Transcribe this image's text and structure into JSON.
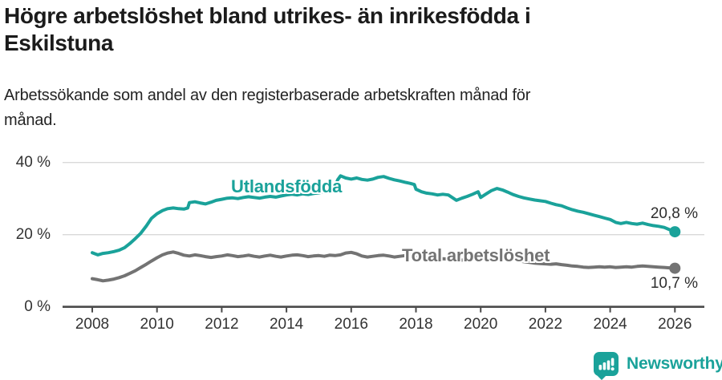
{
  "colors": {
    "brand_teal": "#1aa29a",
    "series_gray": "#737373",
    "grid": "#d9d9d9",
    "axis": "#4a4a4a",
    "text": "#333333"
  },
  "footer": {
    "brand": "Newsworthy"
  },
  "chart_data": {
    "type": "line",
    "title_lines": [
      "Högre arbetslöshet bland utrikes- än inrikesfödda i",
      "Eskilstuna"
    ],
    "subtitle_lines": [
      "Arbetssökande som andel av den registerbaserade arbetskraften månad för",
      "månad."
    ],
    "grid": "horizontal",
    "legend_position": "inline",
    "x_axis": {
      "ticks": [
        2008,
        2010,
        2012,
        2014,
        2016,
        2018,
        2020,
        2022,
        2024,
        2026
      ]
    },
    "y_axis": {
      "range": [
        0,
        44
      ],
      "ticks": [
        {
          "value": 0,
          "label": "0 %"
        },
        {
          "value": 20,
          "label": "20 %"
        },
        {
          "value": 40,
          "label": "40 %"
        }
      ]
    },
    "series": [
      {
        "name": "Utlandsfödda",
        "color": "#1aa29a",
        "end_value": 20.8,
        "end_label": "20,8 %",
        "points": [
          [
            2008.0,
            15.0
          ],
          [
            2008.17,
            14.4
          ],
          [
            2008.33,
            14.8
          ],
          [
            2008.5,
            15.0
          ],
          [
            2008.67,
            15.3
          ],
          [
            2008.83,
            15.7
          ],
          [
            2009.0,
            16.4
          ],
          [
            2009.17,
            17.6
          ],
          [
            2009.33,
            18.9
          ],
          [
            2009.5,
            20.4
          ],
          [
            2009.67,
            22.4
          ],
          [
            2009.83,
            24.5
          ],
          [
            2010.0,
            25.8
          ],
          [
            2010.17,
            26.7
          ],
          [
            2010.33,
            27.2
          ],
          [
            2010.5,
            27.4
          ],
          [
            2010.67,
            27.2
          ],
          [
            2010.83,
            27.1
          ],
          [
            2010.95,
            27.4
          ],
          [
            2011.0,
            28.9
          ],
          [
            2011.17,
            29.1
          ],
          [
            2011.33,
            28.8
          ],
          [
            2011.5,
            28.5
          ],
          [
            2011.67,
            29.0
          ],
          [
            2011.83,
            29.5
          ],
          [
            2012.0,
            29.8
          ],
          [
            2012.17,
            30.1
          ],
          [
            2012.33,
            30.2
          ],
          [
            2012.5,
            30.0
          ],
          [
            2012.67,
            30.3
          ],
          [
            2012.83,
            30.5
          ],
          [
            2013.0,
            30.3
          ],
          [
            2013.17,
            30.1
          ],
          [
            2013.33,
            30.4
          ],
          [
            2013.5,
            30.6
          ],
          [
            2013.67,
            30.4
          ],
          [
            2013.83,
            30.7
          ],
          [
            2014.0,
            31.0
          ],
          [
            2014.17,
            31.2
          ],
          [
            2014.33,
            31.0
          ],
          [
            2014.5,
            31.3
          ],
          [
            2014.67,
            31.1
          ],
          [
            2014.83,
            31.4
          ],
          [
            2015.0,
            31.6
          ],
          [
            2015.17,
            31.9
          ],
          [
            2015.33,
            32.1
          ],
          [
            2015.5,
            33.3
          ],
          [
            2015.58,
            35.2
          ],
          [
            2015.67,
            36.3
          ],
          [
            2015.83,
            35.7
          ],
          [
            2016.0,
            35.4
          ],
          [
            2016.17,
            35.7
          ],
          [
            2016.33,
            35.3
          ],
          [
            2016.5,
            35.1
          ],
          [
            2016.67,
            35.4
          ],
          [
            2016.83,
            35.9
          ],
          [
            2017.0,
            36.1
          ],
          [
            2017.17,
            35.6
          ],
          [
            2017.33,
            35.2
          ],
          [
            2017.5,
            34.9
          ],
          [
            2017.67,
            34.5
          ],
          [
            2017.83,
            34.2
          ],
          [
            2017.95,
            33.9
          ],
          [
            2018.0,
            32.6
          ],
          [
            2018.17,
            31.9
          ],
          [
            2018.33,
            31.5
          ],
          [
            2018.5,
            31.3
          ],
          [
            2018.67,
            31.0
          ],
          [
            2018.83,
            31.2
          ],
          [
            2019.0,
            31.0
          ],
          [
            2019.17,
            30.0
          ],
          [
            2019.25,
            29.5
          ],
          [
            2019.42,
            30.1
          ],
          [
            2019.58,
            30.6
          ],
          [
            2019.75,
            31.2
          ],
          [
            2019.92,
            31.9
          ],
          [
            2020.0,
            30.3
          ],
          [
            2020.17,
            31.3
          ],
          [
            2020.33,
            32.2
          ],
          [
            2020.5,
            32.8
          ],
          [
            2020.67,
            32.4
          ],
          [
            2020.83,
            31.8
          ],
          [
            2021.0,
            31.1
          ],
          [
            2021.17,
            30.6
          ],
          [
            2021.33,
            30.2
          ],
          [
            2021.5,
            29.9
          ],
          [
            2021.67,
            29.6
          ],
          [
            2021.83,
            29.4
          ],
          [
            2022.0,
            29.2
          ],
          [
            2022.17,
            28.7
          ],
          [
            2022.33,
            28.3
          ],
          [
            2022.5,
            28.0
          ],
          [
            2022.67,
            27.4
          ],
          [
            2022.83,
            26.9
          ],
          [
            2023.0,
            26.5
          ],
          [
            2023.17,
            26.2
          ],
          [
            2023.33,
            25.8
          ],
          [
            2023.5,
            25.4
          ],
          [
            2023.67,
            25.0
          ],
          [
            2023.83,
            24.6
          ],
          [
            2024.0,
            24.2
          ],
          [
            2024.17,
            23.4
          ],
          [
            2024.33,
            23.1
          ],
          [
            2024.5,
            23.4
          ],
          [
            2024.67,
            23.1
          ],
          [
            2024.83,
            22.9
          ],
          [
            2025.0,
            23.2
          ],
          [
            2025.17,
            22.8
          ],
          [
            2025.33,
            22.5
          ],
          [
            2025.5,
            22.3
          ],
          [
            2025.67,
            22.0
          ],
          [
            2025.83,
            21.4
          ],
          [
            2026.0,
            20.8
          ]
        ]
      },
      {
        "name": "Total arbetslöshet",
        "color": "#737373",
        "end_value": 10.7,
        "end_label": "10,7 %",
        "points": [
          [
            2008.0,
            7.8
          ],
          [
            2008.17,
            7.5
          ],
          [
            2008.33,
            7.2
          ],
          [
            2008.5,
            7.4
          ],
          [
            2008.67,
            7.7
          ],
          [
            2008.83,
            8.1
          ],
          [
            2009.0,
            8.6
          ],
          [
            2009.17,
            9.3
          ],
          [
            2009.33,
            10.0
          ],
          [
            2009.5,
            10.9
          ],
          [
            2009.67,
            11.8
          ],
          [
            2009.83,
            12.7
          ],
          [
            2010.0,
            13.6
          ],
          [
            2010.17,
            14.4
          ],
          [
            2010.33,
            14.9
          ],
          [
            2010.5,
            15.2
          ],
          [
            2010.67,
            14.8
          ],
          [
            2010.83,
            14.3
          ],
          [
            2011.0,
            14.1
          ],
          [
            2011.17,
            14.4
          ],
          [
            2011.33,
            14.2
          ],
          [
            2011.5,
            13.9
          ],
          [
            2011.67,
            13.7
          ],
          [
            2011.83,
            13.9
          ],
          [
            2012.0,
            14.1
          ],
          [
            2012.17,
            14.4
          ],
          [
            2012.33,
            14.2
          ],
          [
            2012.5,
            13.9
          ],
          [
            2012.67,
            14.1
          ],
          [
            2012.83,
            14.3
          ],
          [
            2013.0,
            14.0
          ],
          [
            2013.17,
            13.8
          ],
          [
            2013.33,
            14.1
          ],
          [
            2013.5,
            14.3
          ],
          [
            2013.67,
            14.0
          ],
          [
            2013.83,
            13.8
          ],
          [
            2014.0,
            14.1
          ],
          [
            2014.17,
            14.3
          ],
          [
            2014.33,
            14.4
          ],
          [
            2014.5,
            14.2
          ],
          [
            2014.67,
            13.9
          ],
          [
            2014.83,
            14.1
          ],
          [
            2015.0,
            14.2
          ],
          [
            2015.17,
            14.0
          ],
          [
            2015.33,
            14.3
          ],
          [
            2015.5,
            14.2
          ],
          [
            2015.67,
            14.4
          ],
          [
            2015.83,
            14.9
          ],
          [
            2016.0,
            15.1
          ],
          [
            2016.17,
            14.7
          ],
          [
            2016.33,
            14.1
          ],
          [
            2016.5,
            13.8
          ],
          [
            2016.67,
            14.0
          ],
          [
            2016.83,
            14.2
          ],
          [
            2017.0,
            14.3
          ],
          [
            2017.17,
            14.1
          ],
          [
            2017.33,
            13.8
          ],
          [
            2017.5,
            14.0
          ],
          [
            2017.67,
            14.2
          ],
          [
            2017.83,
            14.3
          ],
          [
            2018.0,
            14.2
          ],
          [
            2018.17,
            14.0
          ],
          [
            2018.33,
            13.8
          ],
          [
            2018.5,
            13.6
          ],
          [
            2018.67,
            13.4
          ],
          [
            2018.83,
            13.3
          ],
          [
            2019.0,
            13.2
          ],
          [
            2019.17,
            13.0
          ],
          [
            2019.33,
            12.9
          ],
          [
            2019.5,
            13.0
          ],
          [
            2019.67,
            13.2
          ],
          [
            2019.83,
            13.3
          ],
          [
            2020.0,
            13.1
          ],
          [
            2020.17,
            13.6
          ],
          [
            2020.33,
            13.9
          ],
          [
            2020.5,
            14.0
          ],
          [
            2020.67,
            13.7
          ],
          [
            2020.83,
            13.4
          ],
          [
            2021.0,
            13.1
          ],
          [
            2021.17,
            12.8
          ],
          [
            2021.33,
            12.5
          ],
          [
            2021.5,
            12.3
          ],
          [
            2021.67,
            12.1
          ],
          [
            2021.83,
            12.0
          ],
          [
            2022.0,
            11.9
          ],
          [
            2022.17,
            11.8
          ],
          [
            2022.33,
            11.9
          ],
          [
            2022.5,
            11.7
          ],
          [
            2022.67,
            11.5
          ],
          [
            2022.83,
            11.3
          ],
          [
            2023.0,
            11.2
          ],
          [
            2023.17,
            11.0
          ],
          [
            2023.33,
            10.9
          ],
          [
            2023.5,
            11.0
          ],
          [
            2023.67,
            11.1
          ],
          [
            2023.83,
            11.0
          ],
          [
            2024.0,
            11.1
          ],
          [
            2024.17,
            10.9
          ],
          [
            2024.33,
            11.0
          ],
          [
            2024.5,
            11.1
          ],
          [
            2024.67,
            11.0
          ],
          [
            2024.83,
            11.2
          ],
          [
            2025.0,
            11.3
          ],
          [
            2025.17,
            11.2
          ],
          [
            2025.33,
            11.1
          ],
          [
            2025.5,
            11.0
          ],
          [
            2025.67,
            10.9
          ],
          [
            2025.83,
            10.8
          ],
          [
            2026.0,
            10.7
          ]
        ]
      }
    ]
  }
}
